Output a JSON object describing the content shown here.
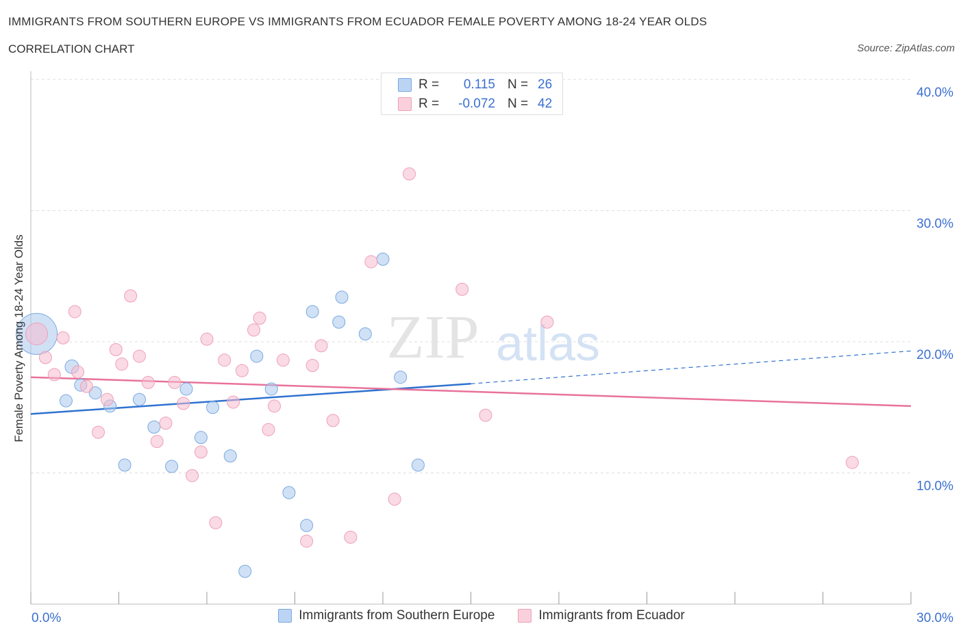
{
  "header": {
    "title": "IMMIGRANTS FROM SOUTHERN EUROPE VS IMMIGRANTS FROM ECUADOR FEMALE POVERTY AMONG 18-24 YEAR OLDS",
    "subtitle": "CORRELATION CHART",
    "source": "Source: ZipAtlas.com"
  },
  "stats": {
    "blue": {
      "r_label": "R =",
      "r_value": "0.115",
      "n_label": "N =",
      "n_value": "26"
    },
    "pink": {
      "r_label": "R =",
      "r_value": "-0.072",
      "n_label": "N =",
      "n_value": "42"
    }
  },
  "watermark": {
    "zip": "ZIP",
    "atlas": "atlas"
  },
  "colors": {
    "blue_fill": "#aac8ef",
    "blue_stroke": "#7aa8e0",
    "blue_line": "#2f72d0",
    "pink_fill": "#f6bccd",
    "pink_stroke": "#eea0b8",
    "pink_line": "#e8729a",
    "axis_text": "#3a6fd0",
    "grid": "#dddddd"
  },
  "chart_data": {
    "type": "scatter",
    "title": "IMMIGRANTS FROM SOUTHERN EUROPE VS IMMIGRANTS FROM ECUADOR FEMALE POVERTY AMONG 18-24 YEAR OLDS",
    "xlabel": "",
    "ylabel": "Female Poverty Among 18-24 Year Olds",
    "xlim": [
      0,
      30
    ],
    "ylim": [
      0,
      40
    ],
    "x_tick_labels": [
      "0.0%",
      "30.0%"
    ],
    "y_ticks": [
      10,
      20,
      30,
      40
    ],
    "y_tick_labels": [
      "10.0%",
      "20.0%",
      "30.0%",
      "40.0%"
    ],
    "legend_position": "bottom",
    "series": [
      {
        "name": "Immigrants from Southern Europe",
        "color": "blue",
        "points": [
          [
            0.2,
            20.6
          ],
          [
            1.4,
            18.1
          ],
          [
            1.2,
            15.5
          ],
          [
            1.7,
            16.7
          ],
          [
            2.2,
            16.1
          ],
          [
            2.7,
            15.1
          ],
          [
            3.2,
            10.6
          ],
          [
            3.7,
            15.6
          ],
          [
            4.2,
            13.5
          ],
          [
            4.8,
            10.5
          ],
          [
            5.3,
            16.4
          ],
          [
            5.8,
            12.7
          ],
          [
            6.2,
            15.0
          ],
          [
            6.8,
            11.3
          ],
          [
            7.3,
            2.5
          ],
          [
            7.7,
            18.9
          ],
          [
            8.2,
            16.4
          ],
          [
            8.8,
            8.5
          ],
          [
            9.4,
            6.0
          ],
          [
            9.6,
            22.3
          ],
          [
            10.5,
            21.5
          ],
          [
            10.6,
            23.4
          ],
          [
            11.4,
            20.6
          ],
          [
            12.0,
            26.3
          ],
          [
            12.6,
            17.3
          ],
          [
            13.2,
            10.6
          ]
        ],
        "sizes": [
          30,
          10,
          9,
          9,
          9,
          9,
          9,
          9,
          9,
          9,
          9,
          9,
          9,
          9,
          9,
          9,
          9,
          9,
          9,
          9,
          9,
          9,
          9,
          9,
          9,
          9
        ],
        "trend": {
          "x_start": 0,
          "y_start": 14.5,
          "x_solid_end": 15,
          "y_solid_end": 16.8,
          "x_end": 30,
          "y_end": 19.3
        }
      },
      {
        "name": "Immigrants from Ecuador",
        "color": "pink",
        "points": [
          [
            0.2,
            20.6
          ],
          [
            0.5,
            18.8
          ],
          [
            0.8,
            17.5
          ],
          [
            1.1,
            20.3
          ],
          [
            1.5,
            22.3
          ],
          [
            1.6,
            17.7
          ],
          [
            1.9,
            16.6
          ],
          [
            2.3,
            13.1
          ],
          [
            2.6,
            15.6
          ],
          [
            2.9,
            19.4
          ],
          [
            3.1,
            18.3
          ],
          [
            3.4,
            23.5
          ],
          [
            3.7,
            18.9
          ],
          [
            4.0,
            16.9
          ],
          [
            4.3,
            12.4
          ],
          [
            4.6,
            13.8
          ],
          [
            4.9,
            16.9
          ],
          [
            5.2,
            15.3
          ],
          [
            5.5,
            9.8
          ],
          [
            5.8,
            11.6
          ],
          [
            6.0,
            20.2
          ],
          [
            6.3,
            6.2
          ],
          [
            6.6,
            18.6
          ],
          [
            6.9,
            15.4
          ],
          [
            7.2,
            17.8
          ],
          [
            7.6,
            20.9
          ],
          [
            7.8,
            21.8
          ],
          [
            8.1,
            13.3
          ],
          [
            8.3,
            15.1
          ],
          [
            8.6,
            18.6
          ],
          [
            9.4,
            4.8
          ],
          [
            9.6,
            18.2
          ],
          [
            9.9,
            19.7
          ],
          [
            10.3,
            14.0
          ],
          [
            10.9,
            5.1
          ],
          [
            11.6,
            26.1
          ],
          [
            12.4,
            8.0
          ],
          [
            12.9,
            32.8
          ],
          [
            14.7,
            24.0
          ],
          [
            15.5,
            14.4
          ],
          [
            17.6,
            21.5
          ],
          [
            28.0,
            10.8
          ]
        ],
        "sizes": [
          16,
          9,
          9,
          9,
          9,
          9,
          9,
          9,
          9,
          9,
          9,
          9,
          9,
          9,
          9,
          9,
          9,
          9,
          9,
          9,
          9,
          9,
          9,
          9,
          9,
          9,
          9,
          9,
          9,
          9,
          9,
          9,
          9,
          9,
          9,
          9,
          9,
          9,
          9,
          9,
          9,
          9
        ],
        "trend": {
          "x_start": 0,
          "y_start": 17.3,
          "x_end": 30,
          "y_end": 15.1
        }
      }
    ]
  },
  "legend": {
    "blue_label": "Immigrants from Southern Europe",
    "pink_label": "Immigrants from Ecuador"
  }
}
